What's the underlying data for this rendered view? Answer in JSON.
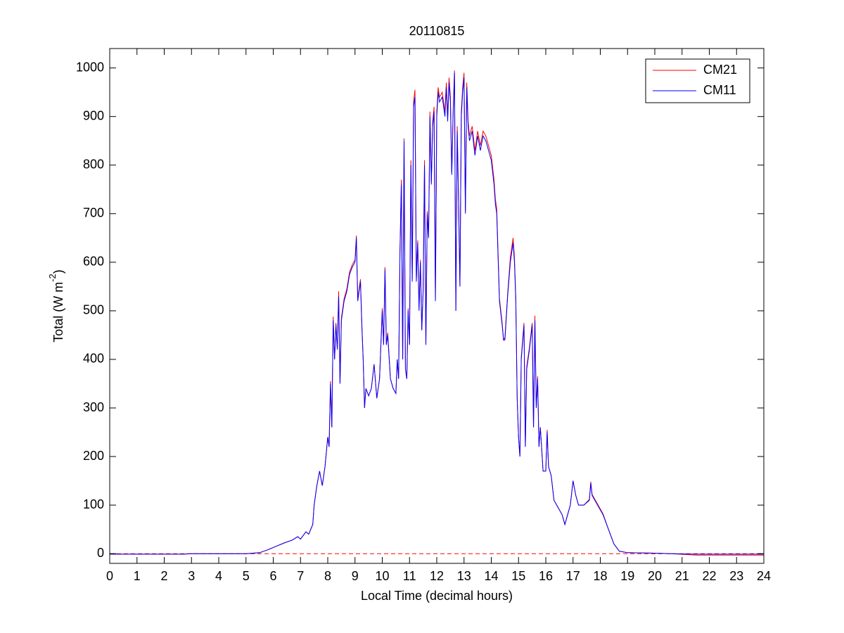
{
  "chart_data": {
    "type": "line",
    "title": "20110815",
    "xlabel": "Local Time (decimal hours)",
    "ylabel": [
      "Total (W m",
      "-2",
      ")"
    ],
    "xlim": [
      0,
      24
    ],
    "xticks": [
      0,
      1,
      2,
      3,
      4,
      5,
      6,
      7,
      8,
      9,
      10,
      11,
      12,
      13,
      14,
      15,
      16,
      17,
      18,
      19,
      20,
      21,
      22,
      23,
      24
    ],
    "ylim": [
      -20,
      1040
    ],
    "yticks": [
      0,
      100,
      200,
      300,
      400,
      500,
      600,
      700,
      800,
      900,
      1000
    ],
    "grid": false,
    "legend": "northeast",
    "reference_line": {
      "value": 0,
      "color": "#ff0000",
      "style": "dashed"
    },
    "x": [
      0,
      2.7,
      3,
      5,
      5.5,
      5.8,
      6.1,
      6.4,
      6.7,
      6.9,
      7.0,
      7.2,
      7.3,
      7.45,
      7.5,
      7.6,
      7.7,
      7.8,
      7.9,
      8.0,
      8.05,
      8.1,
      8.15,
      8.2,
      8.25,
      8.3,
      8.35,
      8.4,
      8.45,
      8.5,
      8.6,
      8.7,
      8.8,
      8.9,
      9.0,
      9.05,
      9.1,
      9.2,
      9.25,
      9.3,
      9.35,
      9.4,
      9.5,
      9.6,
      9.7,
      9.8,
      9.9,
      10.0,
      10.05,
      10.1,
      10.15,
      10.2,
      10.3,
      10.4,
      10.5,
      10.55,
      10.6,
      10.65,
      10.7,
      10.75,
      10.8,
      10.85,
      10.9,
      10.95,
      11.0,
      11.05,
      11.1,
      11.15,
      11.2,
      11.25,
      11.3,
      11.35,
      11.4,
      11.45,
      11.5,
      11.55,
      11.6,
      11.65,
      11.7,
      11.75,
      11.8,
      11.85,
      11.9,
      11.95,
      12.0,
      12.05,
      12.1,
      12.2,
      12.3,
      12.35,
      12.4,
      12.45,
      12.5,
      12.55,
      12.6,
      12.65,
      12.7,
      12.75,
      12.8,
      12.85,
      12.9,
      12.95,
      13.0,
      13.05,
      13.1,
      13.15,
      13.2,
      13.3,
      13.4,
      13.5,
      13.6,
      13.7,
      13.8,
      13.9,
      14.0,
      14.1,
      14.15,
      14.2,
      14.3,
      14.4,
      14.45,
      14.5,
      14.6,
      14.7,
      14.8,
      14.85,
      14.9,
      14.95,
      15.0,
      15.05,
      15.1,
      15.2,
      15.25,
      15.3,
      15.4,
      15.5,
      15.55,
      15.6,
      15.65,
      15.7,
      15.75,
      15.8,
      15.9,
      16.0,
      16.05,
      16.1,
      16.2,
      16.3,
      16.4,
      16.5,
      16.6,
      16.7,
      16.8,
      16.9,
      17.0,
      17.1,
      17.2,
      17.4,
      17.6,
      17.65,
      17.7,
      17.9,
      18.1,
      18.3,
      18.5,
      18.7,
      19.0,
      20.0,
      20.6,
      21.5,
      24
    ],
    "series": [
      {
        "name": "CM21",
        "color": "#ff0000",
        "values": [
          -1,
          -1,
          0,
          0,
          2,
          8,
          15,
          22,
          28,
          35,
          30,
          45,
          40,
          60,
          100,
          140,
          170,
          140,
          180,
          240,
          220,
          355,
          260,
          488,
          400,
          475,
          420,
          540,
          350,
          485,
          525,
          545,
          580,
          595,
          605,
          655,
          525,
          565,
          475,
          400,
          300,
          340,
          325,
          340,
          390,
          320,
          360,
          505,
          430,
          590,
          430,
          455,
          360,
          340,
          330,
          400,
          360,
          625,
          770,
          400,
          855,
          380,
          360,
          505,
          430,
          810,
          565,
          930,
          955,
          565,
          645,
          505,
          605,
          460,
          545,
          810,
          430,
          705,
          655,
          910,
          765,
          890,
          920,
          525,
          910,
          960,
          940,
          950,
          910,
          970,
          900,
          980,
          940,
          785,
          910,
          995,
          500,
          880,
          725,
          550,
          910,
          960,
          990,
          705,
          970,
          890,
          860,
          880,
          830,
          870,
          840,
          870,
          860,
          840,
          820,
          770,
          730,
          710,
          525,
          475,
          440,
          445,
          535,
          610,
          650,
          610,
          525,
          320,
          240,
          200,
          405,
          475,
          220,
          385,
          425,
          475,
          260,
          490,
          300,
          365,
          220,
          260,
          170,
          170,
          255,
          180,
          160,
          110,
          100,
          90,
          80,
          60,
          80,
          100,
          150,
          120,
          100,
          100,
          112,
          148,
          122,
          102,
          82,
          50,
          20,
          5,
          2,
          1,
          0,
          -3,
          -3
        ]
      },
      {
        "name": "CM11",
        "color": "#0000ff",
        "values": [
          -1,
          -1,
          0,
          0,
          2,
          8,
          15,
          22,
          28,
          35,
          30,
          45,
          40,
          60,
          100,
          140,
          170,
          140,
          180,
          240,
          220,
          350,
          260,
          480,
          400,
          470,
          420,
          530,
          350,
          480,
          520,
          540,
          575,
          590,
          600,
          650,
          520,
          560,
          470,
          400,
          300,
          340,
          325,
          340,
          390,
          320,
          360,
          500,
          430,
          585,
          430,
          450,
          360,
          340,
          330,
          400,
          360,
          620,
          760,
          400,
          850,
          380,
          360,
          500,
          430,
          800,
          560,
          920,
          940,
          560,
          640,
          500,
          600,
          460,
          540,
          800,
          430,
          700,
          650,
          900,
          760,
          880,
          910,
          520,
          900,
          950,
          930,
          940,
          900,
          960,
          890,
          970,
          930,
          780,
          900,
          990,
          500,
          870,
          720,
          550,
          900,
          950,
          980,
          700,
          960,
          880,
          850,
          870,
          820,
          860,
          830,
          860,
          850,
          830,
          810,
          760,
          720,
          700,
          520,
          470,
          440,
          440,
          530,
          600,
          640,
          600,
          520,
          320,
          240,
          200,
          400,
          470,
          220,
          380,
          420,
          470,
          260,
          480,
          300,
          360,
          220,
          260,
          170,
          170,
          250,
          180,
          160,
          110,
          100,
          90,
          80,
          60,
          80,
          100,
          150,
          120,
          100,
          100,
          110,
          145,
          120,
          100,
          80,
          50,
          20,
          5,
          2,
          1,
          0,
          -1,
          -1
        ]
      }
    ]
  }
}
